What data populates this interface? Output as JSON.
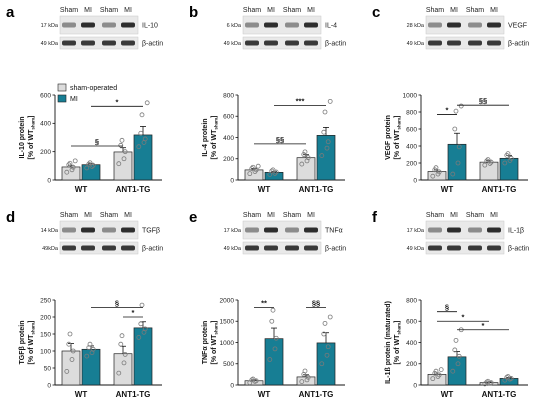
{
  "colors": {
    "sham": "#dcdcdc",
    "mi": "#177e94",
    "dot_edge": "#7a7a7a",
    "axis": "#111111",
    "blot_bg": "#e9e9e9",
    "band": "#1a1a1a"
  },
  "blot_lanes": [
    "Sham",
    "MI",
    "Sham",
    "MI"
  ],
  "legend": {
    "items": [
      {
        "label": "sham-operated",
        "key": "sham"
      },
      {
        "label": "MI",
        "key": "mi"
      }
    ]
  },
  "chart_data": [
    {
      "type": "bar",
      "letter": "a",
      "blot": {
        "markers": [
          {
            "kda": "17 kDa",
            "protein": "IL-10"
          },
          {
            "kda": "49 kDa",
            "protein": "β-actin"
          }
        ]
      },
      "ylabel_lines": [
        "IL-10 protein",
        "[% of WT"
      ],
      "ylabel_sub": "sham",
      "ylabel_tail": "]",
      "ylim": [
        0,
        600
      ],
      "yticks": [
        "0",
        "200",
        "400",
        "600"
      ],
      "categories": [
        "WT",
        "ANT1-TG"
      ],
      "series": [
        {
          "key": "sham",
          "values": [
            92,
            198
          ],
          "errors": [
            12,
            30
          ]
        },
        {
          "key": "mi",
          "values": [
            108,
            318
          ],
          "errors": [
            10,
            60
          ]
        }
      ],
      "points": [
        [
          [
            55,
            72,
            90,
            108,
            118,
            135
          ],
          [
            85,
            95,
            103,
            112,
            122
          ]
        ],
        [
          [
            115,
            150,
            200,
            245,
            280
          ],
          [
            235,
            265,
            290,
            330,
            460,
            545
          ]
        ]
      ],
      "brackets": [
        {
          "from": 0,
          "to": 2,
          "symbol": "§",
          "level": 240
        },
        {
          "from": 1,
          "to": 3,
          "symbol": "*",
          "level": 520
        }
      ]
    },
    {
      "type": "bar",
      "letter": "b",
      "blot": {
        "markers": [
          {
            "kda": "6 kDa",
            "protein": "IL-4"
          },
          {
            "kda": "49 kDa",
            "protein": "β-actin"
          }
        ]
      },
      "ylabel_lines": [
        "IL-4 protein",
        "[% of WT"
      ],
      "ylabel_sub": "sham",
      "ylabel_tail": "]",
      "ylim": [
        0,
        800
      ],
      "yticks": [
        "0",
        "200",
        "400",
        "600",
        "800"
      ],
      "categories": [
        "WT",
        "ANT1-TG"
      ],
      "series": [
        {
          "key": "sham",
          "values": [
            95,
            210
          ],
          "errors": [
            14,
            28
          ]
        },
        {
          "key": "mi",
          "values": [
            72,
            420
          ],
          "errors": [
            10,
            75
          ]
        }
      ],
      "points": [
        [
          [
            60,
            80,
            95,
            108,
            120,
            130
          ],
          [
            52,
            62,
            75,
            85,
            95
          ]
        ],
        [
          [
            150,
            180,
            210,
            240,
            265
          ],
          [
            230,
            300,
            360,
            450,
            640,
            740
          ]
        ]
      ],
      "brackets": [
        {
          "from": 0,
          "to": 2,
          "symbol": "§§",
          "level": 340
        },
        {
          "from": 1,
          "to": 3,
          "symbol": "***",
          "level": 700
        }
      ]
    },
    {
      "type": "bar",
      "letter": "c",
      "blot": {
        "markers": [
          {
            "kda": "28 kDa",
            "protein": "VEGF"
          },
          {
            "kda": "49 kDa",
            "protein": "β-actin"
          }
        ]
      },
      "ylabel_lines": [
        "VEGF protein",
        "[% of WT"
      ],
      "ylabel_sub": "sham",
      "ylabel_tail": "]",
      "ylim": [
        0,
        1000
      ],
      "yticks": [
        "0",
        "200",
        "400",
        "600",
        "800",
        "1000"
      ],
      "categories": [
        "WT",
        "ANT1-TG"
      ],
      "series": [
        {
          "key": "sham",
          "values": [
            100,
            210
          ],
          "errors": [
            18,
            22
          ]
        },
        {
          "key": "mi",
          "values": [
            420,
            255
          ],
          "errors": [
            130,
            35
          ]
        }
      ],
      "points": [
        [
          [
            45,
            70,
            95,
            120,
            145
          ],
          [
            70,
            200,
            390,
            600,
            810,
            870
          ]
        ],
        [
          [
            175,
            195,
            210,
            225,
            240
          ],
          [
            200,
            230,
            255,
            290,
            310
          ]
        ]
      ],
      "brackets": [
        {
          "from": 0,
          "to": 1,
          "symbol": "*",
          "level": 770
        },
        {
          "from": 1,
          "to": 3,
          "symbol": "§§",
          "level": 880
        }
      ]
    },
    {
      "type": "bar",
      "letter": "d",
      "blot": {
        "markers": [
          {
            "kda": "14 kDa",
            "protein": "TGFβ"
          },
          {
            "kda": "49kDa",
            "protein": "β-actin"
          }
        ]
      },
      "ylabel_lines": [
        "TGFβ protein",
        "[% of WT"
      ],
      "ylabel_sub": "sham",
      "ylabel_tail": "]",
      "ylim": [
        0,
        250
      ],
      "yticks": [
        "0",
        "50",
        "100",
        "150",
        "200",
        "250"
      ],
      "categories": [
        "WT",
        "ANT1-TG"
      ],
      "series": [
        {
          "key": "sham",
          "values": [
            100,
            92
          ],
          "errors": [
            22,
            22
          ]
        },
        {
          "key": "mi",
          "values": [
            105,
            168
          ],
          "errors": [
            10,
            18
          ]
        }
      ],
      "points": [
        [
          [
            40,
            75,
            100,
            120,
            150
          ],
          [
            85,
            95,
            105,
            110,
            120
          ]
        ],
        [
          [
            35,
            65,
            90,
            120,
            145
          ],
          [
            140,
            155,
            165,
            180,
            235
          ]
        ]
      ],
      "brackets": [
        {
          "from": 1,
          "to": 3,
          "symbol": "§",
          "level": 228
        },
        {
          "from": 2,
          "to": 3,
          "symbol": "*",
          "level": 200
        }
      ]
    },
    {
      "type": "bar",
      "letter": "e",
      "blot": {
        "markers": [
          {
            "kda": "17 kDa",
            "protein": "TNFα"
          },
          {
            "kda": "49 kDa",
            "protein": "β-actin"
          }
        ]
      },
      "ylabel_lines": [
        "TNFα protein",
        "[% of WT"
      ],
      "ylabel_sub": "sham",
      "ylabel_tail": "]",
      "ylim": [
        0,
        2000
      ],
      "yticks": [
        "0",
        "500",
        "1000",
        "1500",
        "2000"
      ],
      "categories": [
        "WT",
        "ANT1-TG"
      ],
      "series": [
        {
          "key": "sham",
          "values": [
            100,
            190
          ],
          "errors": [
            20,
            50
          ]
        },
        {
          "key": "mi",
          "values": [
            1090,
            990
          ],
          "errors": [
            250,
            240
          ]
        }
      ],
      "points": [
        [
          [
            55,
            85,
            100,
            120,
            140
          ],
          [
            600,
            850,
            1100,
            1500,
            1760
          ]
        ],
        [
          [
            80,
            120,
            180,
            250,
            330
          ],
          [
            500,
            700,
            900,
            1200,
            1450,
            1600
          ]
        ]
      ],
      "brackets": [
        {
          "from": 0,
          "to": 1,
          "symbol": "**",
          "level": 1820
        },
        {
          "from": 2,
          "to": 3,
          "symbol": "§§",
          "level": 1820
        }
      ]
    },
    {
      "type": "bar",
      "letter": "f",
      "blot": {
        "markers": [
          {
            "kda": "17 kDa",
            "protein": "IL-1β"
          },
          {
            "kda": "49 kDa",
            "protein": "β-actin"
          }
        ]
      },
      "ylabel_lines": [
        "IL-1ß protein (maturated)",
        "[% of WT"
      ],
      "ylabel_sub": "sham",
      "ylabel_tail": "]",
      "ylim": [
        0,
        800
      ],
      "yticks": [
        "0",
        "200",
        "400",
        "600",
        "800"
      ],
      "categories": [
        "WT",
        "ANT1-TG"
      ],
      "series": [
        {
          "key": "sham",
          "values": [
            100,
            22
          ],
          "errors": [
            12,
            6
          ]
        },
        {
          "key": "mi",
          "values": [
            265,
            62
          ],
          "errors": [
            50,
            8
          ]
        }
      ],
      "points": [
        [
          [
            60,
            80,
            95,
            110,
            130,
            145
          ],
          [
            130,
            200,
            270,
            330,
            420,
            520
          ]
        ],
        [
          [
            10,
            15,
            22,
            28,
            35
          ],
          [
            45,
            55,
            62,
            72,
            80
          ]
        ]
      ],
      "brackets": [
        {
          "from": 0,
          "to": 1,
          "symbol": "§",
          "level": 690
        },
        {
          "from": 0,
          "to": 2,
          "symbol": "*",
          "level": 600
        },
        {
          "from": 1,
          "to": 3,
          "symbol": "*",
          "level": 520
        }
      ]
    }
  ]
}
